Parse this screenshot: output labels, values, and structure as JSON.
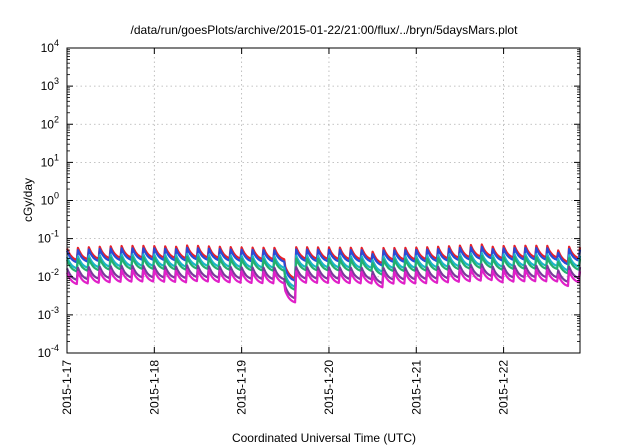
{
  "chart_data": {
    "type": "line",
    "title": "/data/run/goesPlots/archive/2015-01-22/21:00/flux/../bryn/5daysMars.plot",
    "xlabel": "Coordinated Universal Time (UTC)",
    "ylabel": "cGy/day",
    "xlim": [
      "2015-01-17",
      "2015-01-22 21:00"
    ],
    "ylim": [
      0.0001,
      10000
    ],
    "yscale": "log",
    "grid": true,
    "x_ticks": [
      "2015-1-17",
      "2015-1-18",
      "2015-1-19",
      "2015-1-20",
      "2015-1-21",
      "2015-1-22"
    ],
    "y_ticks": [
      {
        "base": "10",
        "exp": "-4"
      },
      {
        "base": "10",
        "exp": "-3"
      },
      {
        "base": "10",
        "exp": "-2"
      },
      {
        "base": "10",
        "exp": "-1"
      },
      {
        "base": "10",
        "exp": "0"
      },
      {
        "base": "10",
        "exp": "1"
      },
      {
        "base": "10",
        "exp": "2"
      },
      {
        "base": "10",
        "exp": "3"
      },
      {
        "base": "10",
        "exp": "4"
      }
    ],
    "sampling": "sawtooth, period ~3 h, peak then decay",
    "series": [
      {
        "color": "#e8202a",
        "level": 0.06
      },
      {
        "color": "#2a4bd7",
        "level": 0.052
      },
      {
        "color": "#1db4c8",
        "level": 0.036
      },
      {
        "color": "#22b070",
        "level": 0.03
      },
      {
        "color": "#7a3a9a",
        "level": 0.018
      },
      {
        "color": "#e020c8",
        "level": 0.014
      }
    ]
  }
}
